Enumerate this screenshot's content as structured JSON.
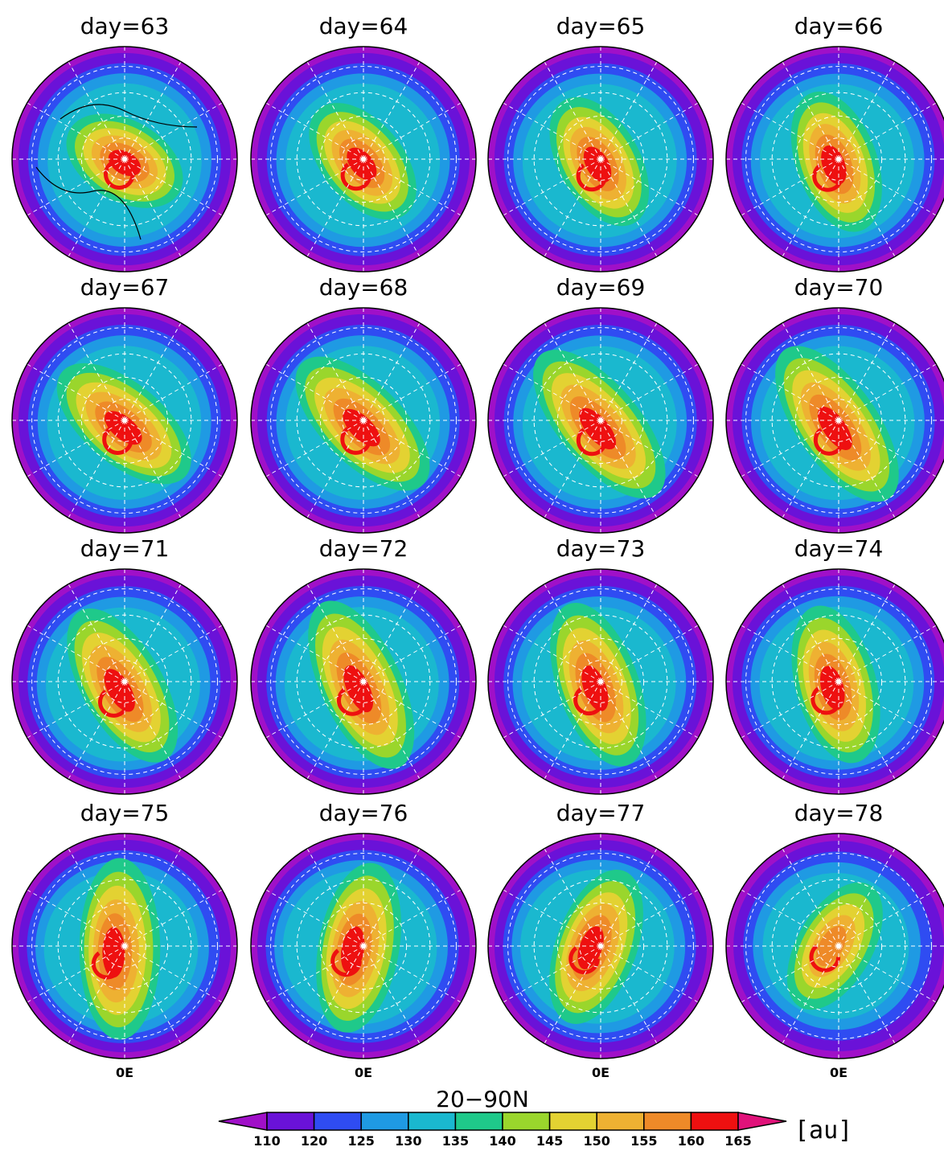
{
  "chart_data": {
    "type": "heatmap",
    "projection": "north polar stereographic",
    "domain_label": "20−90N",
    "longitude_label": "0E",
    "layout": {
      "rows": 4,
      "cols": 4
    },
    "panels": [
      {
        "title": "day=63",
        "day": 63,
        "coastlines": true,
        "vortex": {
          "center_lon": 0,
          "center_lat": 87,
          "elongation": 1.25,
          "max_level": 165
        }
      },
      {
        "title": "day=64",
        "day": 64,
        "coastlines": false,
        "vortex": {
          "center_lon": -20,
          "center_lat": 86,
          "elongation": 1.35,
          "max_level": 165
        }
      },
      {
        "title": "day=65",
        "day": 65,
        "coastlines": false,
        "vortex": {
          "center_lon": -30,
          "center_lat": 85,
          "elongation": 1.4,
          "max_level": 165
        }
      },
      {
        "title": "day=66",
        "day": 66,
        "coastlines": false,
        "vortex": {
          "center_lon": -40,
          "center_lat": 84,
          "elongation": 1.45,
          "max_level": 165
        }
      },
      {
        "title": "day=67",
        "day": 67,
        "coastlines": false,
        "vortex": {
          "center_lon": -10,
          "center_lat": 84,
          "elongation": 1.6,
          "max_level": 165
        }
      },
      {
        "title": "day=68",
        "day": 68,
        "coastlines": false,
        "vortex": {
          "center_lon": -15,
          "center_lat": 84,
          "elongation": 1.7,
          "max_level": 165
        }
      },
      {
        "title": "day=69",
        "day": 69,
        "coastlines": false,
        "vortex": {
          "center_lon": -20,
          "center_lat": 83,
          "elongation": 1.8,
          "max_level": 165
        }
      },
      {
        "title": "day=70",
        "day": 70,
        "coastlines": false,
        "vortex": {
          "center_lon": -25,
          "center_lat": 83,
          "elongation": 1.8,
          "max_level": 165
        }
      },
      {
        "title": "day=71",
        "day": 71,
        "coastlines": false,
        "vortex": {
          "center_lon": -30,
          "center_lat": 82,
          "elongation": 1.7,
          "max_level": 165
        }
      },
      {
        "title": "day=72",
        "day": 72,
        "coastlines": false,
        "vortex": {
          "center_lon": -35,
          "center_lat": 83,
          "elongation": 1.8,
          "max_level": 165
        }
      },
      {
        "title": "day=73",
        "day": 73,
        "coastlines": false,
        "vortex": {
          "center_lon": -40,
          "center_lat": 83,
          "elongation": 1.7,
          "max_level": 165
        }
      },
      {
        "title": "day=74",
        "day": 74,
        "coastlines": false,
        "vortex": {
          "center_lon": -45,
          "center_lat": 83,
          "elongation": 1.6,
          "max_level": 165
        }
      },
      {
        "title": "day=75",
        "day": 75,
        "coastlines": false,
        "vortex": {
          "center_lon": -60,
          "center_lat": 80,
          "elongation": 1.8,
          "max_level": 165
        }
      },
      {
        "title": "day=76",
        "day": 76,
        "coastlines": false,
        "vortex": {
          "center_lon": -70,
          "center_lat": 81,
          "elongation": 1.7,
          "max_level": 165
        }
      },
      {
        "title": "day=77",
        "day": 77,
        "coastlines": false,
        "vortex": {
          "center_lon": -80,
          "center_lat": 82,
          "elongation": 1.6,
          "max_level": 165
        }
      },
      {
        "title": "day=78",
        "day": 78,
        "coastlines": false,
        "vortex": {
          "center_lon": -90,
          "center_lat": 84,
          "elongation": 1.5,
          "max_level": 160
        }
      }
    ],
    "colorbar": {
      "levels": [
        110,
        120,
        125,
        130,
        135,
        140,
        145,
        150,
        155,
        160,
        165
      ],
      "tick_labels": [
        "110",
        "120",
        "125",
        "130",
        "135",
        "140",
        "145",
        "150",
        "155",
        "160",
        "165"
      ],
      "colors": [
        "#a010c8",
        "#6a12d8",
        "#2f4cf2",
        "#1f9ae3",
        "#1ab8cf",
        "#1fc98a",
        "#9ad62c",
        "#e3d232",
        "#eeb132",
        "#ee8a28",
        "#ee1010",
        "#e0127a"
      ],
      "extend": "both",
      "unit": "[au]"
    },
    "grid": true
  }
}
